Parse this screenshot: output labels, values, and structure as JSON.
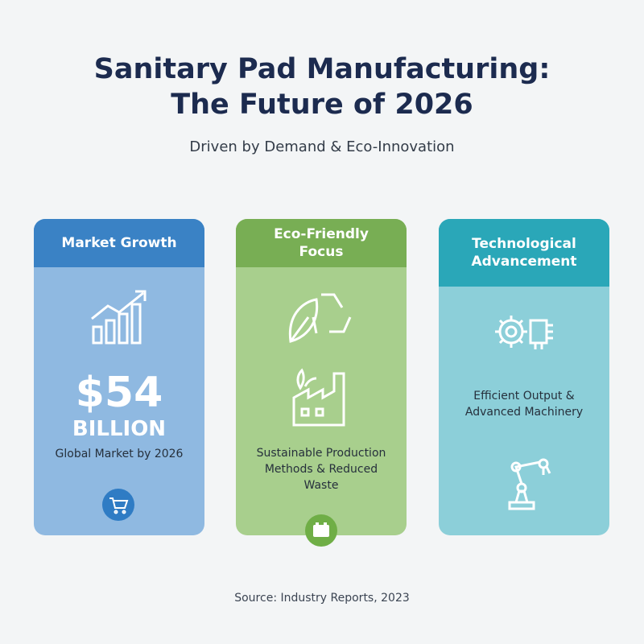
{
  "header": {
    "title_lines": [
      "Sanitary Pad Manufacturing:",
      "The Future of 2026"
    ],
    "subtitle": "Driven by Demand & Eco-Innovation"
  },
  "cards": [
    {
      "title": "Market Growth",
      "figure": "$54",
      "unit": "BILLION",
      "caption": "Global Market by 2026"
    },
    {
      "title": "Eco-Friendly Focus",
      "caption": "Sustainable Production Methods & Reduced Waste"
    },
    {
      "title": "Technological Advancement",
      "caption": "Efficient Output & Advanced Machinery"
    }
  ],
  "footer": {
    "source": "Source: Industry Reports, 2023"
  }
}
